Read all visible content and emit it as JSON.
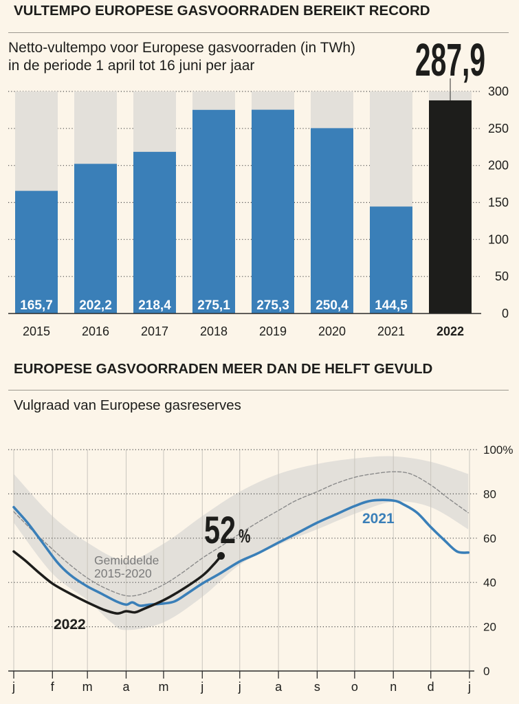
{
  "colors": {
    "background": "#fcf5e9",
    "text": "#1d1d1b",
    "bar": "#3a7fb8",
    "bar_track": "#e3e0da",
    "bar_label": "#ffffff",
    "highlight": "#1d1d1b",
    "grid": "#4a4a4a",
    "axis": "#2b2b2b",
    "month_grid": "#c9c5bd"
  },
  "chart_data": [
    {
      "type": "bar",
      "title": "VULTEMPO EUROPESE GASVOORRADEN BEREIKT RECORD",
      "subtitle": [
        "Netto-vultempo voor Europese gasvoorraden (in TWh)",
        "in de periode 1 april tot 16 juni per jaar"
      ],
      "categories": [
        "2015",
        "2016",
        "2017",
        "2018",
        "2019",
        "2020",
        "2021",
        "2022"
      ],
      "values": [
        165.7,
        202.2,
        218.4,
        275.1,
        275.3,
        250.4,
        144.5,
        287.9
      ],
      "data_labels": [
        "165,7",
        "202,2",
        "218,4",
        "275,1",
        "275,3",
        "250,4",
        "144,5",
        "287,9"
      ],
      "highlight": "2022",
      "ylim": [
        0,
        300
      ],
      "yticks": [
        0,
        50,
        100,
        150,
        200,
        250,
        300
      ],
      "grid": true
    },
    {
      "type": "line",
      "title": "EUROPESE GASVOORRADEN MEER DAN DE HELFT GEVULD",
      "subtitle": "Vulgraad van Europese gasreserves",
      "x_tick_labels": [
        "j",
        "f",
        "m",
        "a",
        "m",
        "j",
        "j",
        "a",
        "s",
        "o",
        "n",
        "d",
        "j"
      ],
      "ylim": [
        0,
        100
      ],
      "yticks": [
        0,
        20,
        40,
        60,
        80,
        100
      ],
      "ytick_labels": [
        "0",
        "20",
        "40",
        "60",
        "80",
        "100%"
      ],
      "grid": true,
      "end_label": {
        "value": "52",
        "unit": "%"
      },
      "series": [
        {
          "type": "band",
          "color": "#e3e0da",
          "upper": [
            {
              "date": "01-01",
              "value": 89
            },
            {
              "date": "02-01",
              "value": 70
            },
            {
              "date": "03-01",
              "value": 58
            },
            {
              "date": "04-01",
              "value": 50
            },
            {
              "date": "05-01",
              "value": 57.5
            },
            {
              "date": "06-01",
              "value": 70
            },
            {
              "date": "07-01",
              "value": 81
            },
            {
              "date": "08-01",
              "value": 89
            },
            {
              "date": "09-01",
              "value": 93.5
            },
            {
              "date": "10-01",
              "value": 96
            },
            {
              "date": "11-01",
              "value": 97
            },
            {
              "date": "12-01",
              "value": 94.5
            },
            {
              "date": "12-31",
              "value": 89
            }
          ],
          "lower": [
            {
              "date": "01-01",
              "value": 67
            },
            {
              "date": "02-01",
              "value": 44
            },
            {
              "date": "03-01",
              "value": 32
            },
            {
              "date": "03-20",
              "value": 22
            },
            {
              "date": "04-01",
              "value": 18.5
            },
            {
              "date": "05-01",
              "value": 22
            },
            {
              "date": "06-01",
              "value": 33.5
            },
            {
              "date": "07-01",
              "value": 48
            },
            {
              "date": "08-01",
              "value": 57
            },
            {
              "date": "09-01",
              "value": 64
            },
            {
              "date": "10-01",
              "value": 71
            },
            {
              "date": "11-01",
              "value": 76.5
            },
            {
              "date": "12-01",
              "value": 74
            },
            {
              "date": "12-31",
              "value": 64
            }
          ]
        },
        {
          "name": "Gemiddelde 2015-2020",
          "style": "dashed",
          "color": "#8a8a8a",
          "label_color": "#7b7b7b",
          "points": [
            {
              "date": "01-01",
              "value": 72
            },
            {
              "date": "01-15",
              "value": 64
            },
            {
              "date": "02-01",
              "value": 55
            },
            {
              "date": "02-15",
              "value": 48
            },
            {
              "date": "03-01",
              "value": 42
            },
            {
              "date": "03-15",
              "value": 37.5
            },
            {
              "date": "04-01",
              "value": 34
            },
            {
              "date": "04-15",
              "value": 35
            },
            {
              "date": "05-01",
              "value": 39
            },
            {
              "date": "05-15",
              "value": 44
            },
            {
              "date": "06-01",
              "value": 51
            },
            {
              "date": "06-15",
              "value": 56
            },
            {
              "date": "07-01",
              "value": 62
            },
            {
              "date": "07-15",
              "value": 67
            },
            {
              "date": "08-01",
              "value": 72.5
            },
            {
              "date": "08-15",
              "value": 77
            },
            {
              "date": "09-01",
              "value": 81
            },
            {
              "date": "09-15",
              "value": 84.5
            },
            {
              "date": "10-01",
              "value": 87.5
            },
            {
              "date": "10-15",
              "value": 89
            },
            {
              "date": "11-01",
              "value": 90
            },
            {
              "date": "11-15",
              "value": 89
            },
            {
              "date": "12-01",
              "value": 84
            },
            {
              "date": "12-15",
              "value": 78
            },
            {
              "date": "12-31",
              "value": 71.5
            }
          ]
        },
        {
          "name": "2021",
          "color": "#3a7fb8",
          "points": [
            {
              "date": "01-01",
              "value": 74
            },
            {
              "date": "01-12",
              "value": 67
            },
            {
              "date": "01-24",
              "value": 58
            },
            {
              "date": "02-05",
              "value": 49
            },
            {
              "date": "02-15",
              "value": 43.5
            },
            {
              "date": "02-28",
              "value": 38.5
            },
            {
              "date": "03-12",
              "value": 35
            },
            {
              "date": "03-24",
              "value": 31.5
            },
            {
              "date": "04-01",
              "value": 30
            },
            {
              "date": "04-06",
              "value": 31
            },
            {
              "date": "04-12",
              "value": 29.5
            },
            {
              "date": "04-20",
              "value": 30
            },
            {
              "date": "05-01",
              "value": 30.5
            },
            {
              "date": "05-10",
              "value": 31.5
            },
            {
              "date": "05-20",
              "value": 35
            },
            {
              "date": "06-01",
              "value": 39.5
            },
            {
              "date": "06-15",
              "value": 44
            },
            {
              "date": "07-01",
              "value": 49.5
            },
            {
              "date": "07-15",
              "value": 53
            },
            {
              "date": "08-01",
              "value": 58
            },
            {
              "date": "08-15",
              "value": 62
            },
            {
              "date": "09-01",
              "value": 67
            },
            {
              "date": "09-15",
              "value": 70.5
            },
            {
              "date": "10-01",
              "value": 74.5
            },
            {
              "date": "10-15",
              "value": 77
            },
            {
              "date": "11-01",
              "value": 77
            },
            {
              "date": "11-10",
              "value": 75
            },
            {
              "date": "11-20",
              "value": 71.5
            },
            {
              "date": "12-01",
              "value": 65
            },
            {
              "date": "12-12",
              "value": 59
            },
            {
              "date": "12-22",
              "value": 54
            },
            {
              "date": "12-31",
              "value": 53.5
            }
          ]
        },
        {
          "name": "2022",
          "color": "#1d1d1b",
          "points": [
            {
              "date": "01-01",
              "value": 54
            },
            {
              "date": "01-10",
              "value": 50
            },
            {
              "date": "01-20",
              "value": 45
            },
            {
              "date": "02-01",
              "value": 39.5
            },
            {
              "date": "02-15",
              "value": 35
            },
            {
              "date": "03-01",
              "value": 31
            },
            {
              "date": "03-15",
              "value": 27.5
            },
            {
              "date": "03-25",
              "value": 26
            },
            {
              "date": "04-01",
              "value": 27
            },
            {
              "date": "04-08",
              "value": 26.5
            },
            {
              "date": "04-15",
              "value": 28
            },
            {
              "date": "05-01",
              "value": 32
            },
            {
              "date": "05-15",
              "value": 36.5
            },
            {
              "date": "06-01",
              "value": 43
            },
            {
              "date": "06-10",
              "value": 48
            },
            {
              "date": "06-16",
              "value": 52
            }
          ]
        }
      ]
    }
  ]
}
